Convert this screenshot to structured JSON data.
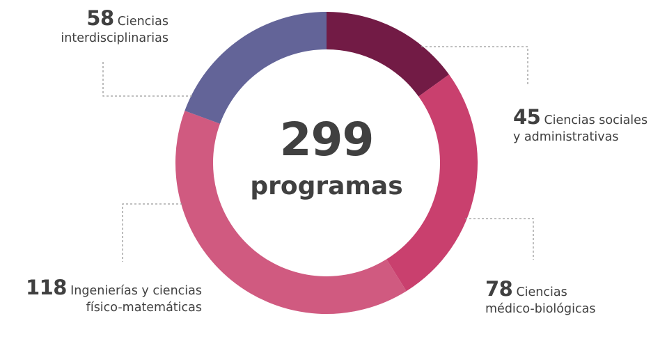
{
  "center": {
    "total": "299",
    "unit_label": "programas"
  },
  "labels": {
    "interdisciplinarias": {
      "value": "58",
      "line1": "Ciencias",
      "line2": "interdisciplinarias"
    },
    "sociales": {
      "value": "45",
      "line1": "Ciencias sociales",
      "line2": "y administrativas"
    },
    "medico": {
      "value": "78",
      "line1": "Ciencias",
      "line2": "médico-biológicas"
    },
    "ingenierias": {
      "value": "118",
      "line1": "Ingenierías y ciencias",
      "line2": "físico-matemáticas"
    }
  },
  "colors": {
    "sociales": "#721B45",
    "medico": "#C9406E",
    "ingenierias": "#D05A80",
    "interdisciplinarias": "#636498",
    "text": "#404040",
    "leader_line": "#9a9a9a"
  },
  "chart_data": {
    "type": "pie",
    "variant": "donut",
    "title": "",
    "center_text": "299 programas",
    "total": 299,
    "start_angle": "12 o'clock",
    "direction": "clockwise",
    "categories": [
      "Ciencias sociales y administrativas",
      "Ciencias médico-biológicas",
      "Ingenierías y ciencias físico-matemáticas",
      "Ciencias interdisciplinarias"
    ],
    "values": [
      45,
      78,
      118,
      58
    ],
    "colors": [
      "#721B45",
      "#C9406E",
      "#D05A80",
      "#636498"
    ],
    "legend": "none (callout labels with dashed leader lines)"
  }
}
